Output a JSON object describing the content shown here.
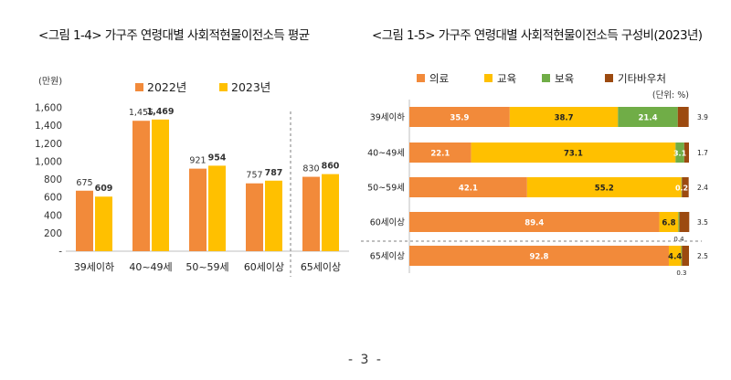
{
  "page_number": "- 3 -",
  "chart_data": [
    {
      "type": "bar",
      "title": "<그림 1-4> 가구주 연령대별 사회적현물이전소득 평균",
      "ylabel": "(만원)",
      "ylim": [
        0,
        1600
      ],
      "yticks": [
        "-",
        "200",
        "400",
        "600",
        "800",
        "1,000",
        "1,200",
        "1,400",
        "1,600"
      ],
      "categories": [
        "39세이하",
        "40~49세",
        "50~59세",
        "60세이상",
        "65세이상"
      ],
      "series": [
        {
          "name": "2022년",
          "color": "#f28a3a",
          "values": [
            675,
            1455,
            921,
            757,
            830
          ],
          "labels": [
            "675",
            "1,455",
            "921",
            "757",
            "830"
          ]
        },
        {
          "name": "2023년",
          "color": "#ffc000",
          "values": [
            609,
            1469,
            954,
            787,
            860
          ],
          "labels": [
            "609",
            "1,469",
            "954",
            "787",
            "860"
          ]
        }
      ],
      "legend": "top",
      "grid": false
    },
    {
      "type": "bar",
      "orientation": "horizontal-stacked",
      "title": "<그림 1-5> 가구주 연령대별 사회적현물이전소득 구성비(2023년)",
      "unit": "(단위: %)",
      "categories": [
        "39세이하",
        "40~49세",
        "50~59세",
        "60세이상",
        "65세이상"
      ],
      "series": [
        {
          "name": "의료",
          "color": "#f28a3a",
          "values": [
            35.9,
            22.1,
            42.1,
            89.4,
            92.8
          ],
          "labels": [
            "35.9",
            "22.1",
            "42.1",
            "89.4",
            "92.8"
          ]
        },
        {
          "name": "교육",
          "color": "#ffc000",
          "values": [
            38.7,
            73.1,
            55.2,
            6.8,
            4.4
          ],
          "labels": [
            "38.7",
            "73.1",
            "55.2",
            "6.8",
            "4.4"
          ]
        },
        {
          "name": "보육",
          "color": "#70ad47",
          "values": [
            21.4,
            3.1,
            0.2,
            0.4,
            0.3
          ],
          "labels": [
            "21.4",
            "3.1",
            "0.2",
            "0.4",
            "0.3"
          ]
        },
        {
          "name": "기타바우처",
          "color": "#9c4a10",
          "values": [
            3.9,
            1.7,
            2.4,
            3.5,
            2.5
          ],
          "labels": [
            "3.9",
            "1.7",
            "2.4",
            "3.5",
            "2.5"
          ]
        }
      ],
      "xlim": [
        0,
        100
      ],
      "legend": "top",
      "grid": false
    }
  ]
}
